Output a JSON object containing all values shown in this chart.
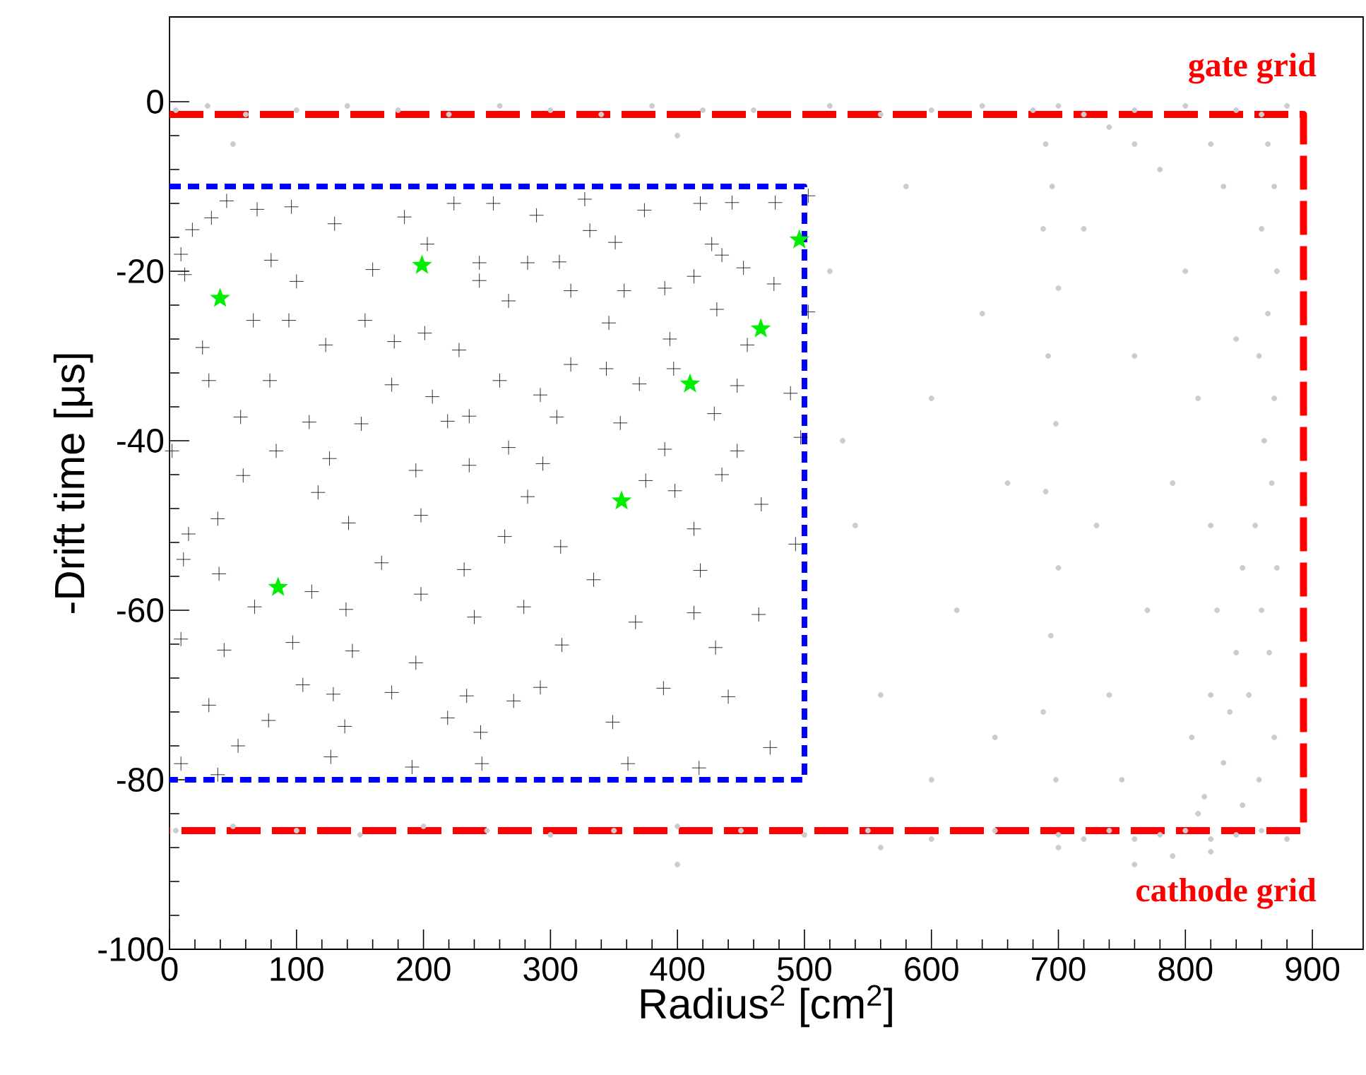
{
  "chart_data": {
    "type": "scatter",
    "xlabel": "Radius$^{2}$ [cm$^{2}$]",
    "ylabel": "-Drift time [μs]",
    "xlim": [
      0,
      940
    ],
    "ylim": [
      -100,
      10
    ],
    "xticks": [
      0,
      100,
      200,
      300,
      400,
      500,
      600,
      700,
      800,
      900
    ],
    "yticks": [
      -100,
      -80,
      -60,
      -40,
      -20,
      0
    ],
    "annotations": [
      "gate grid",
      "cathode grid"
    ],
    "series": [
      {
        "marker": "circle",
        "color": "#cccccc",
        "x": [
          5,
          30,
          60,
          100,
          140,
          180,
          220,
          260,
          300,
          340,
          380,
          420,
          460,
          520,
          560,
          600,
          640,
          680,
          700,
          720,
          760,
          800,
          840,
          860,
          880,
          5,
          50,
          100,
          150,
          200,
          250,
          300,
          350,
          400,
          450,
          500,
          550,
          600,
          650,
          700,
          720,
          740,
          760,
          780,
          800,
          820,
          840,
          860,
          880,
          700,
          760,
          790,
          820,
          400,
          560,
          865,
          870,
          860,
          872,
          865,
          858,
          870,
          862,
          868,
          855,
          872,
          860,
          866,
          850,
          870,
          858,
          845,
          805,
          820,
          830,
          815,
          840,
          835,
          810,
          825,
          845,
          690,
          695,
          688,
          700,
          692,
          698,
          690,
          700,
          694,
          688,
          698,
          520,
          540,
          560,
          580,
          600,
          620,
          640,
          650,
          660,
          720,
          730,
          740,
          760,
          770,
          780,
          790,
          800,
          810,
          820,
          830,
          840,
          750,
          600,
          760,
          740,
          820,
          50,
          400,
          530
        ],
        "values": [
          -1,
          -0.5,
          -1.5,
          -1,
          -0.5,
          -1,
          -1.5,
          -0.5,
          -1,
          -1.5,
          -0.5,
          -1,
          -1,
          -0.5,
          -1.5,
          -1,
          -0.5,
          -1,
          -0.5,
          -1.5,
          -1,
          -0.5,
          -1,
          -1.5,
          -0.5,
          -86,
          -85.5,
          -86,
          -86.5,
          -85.5,
          -86,
          -86.5,
          -86,
          -85.5,
          -86,
          -86.5,
          -86,
          -87,
          -86,
          -86.5,
          -87,
          -86,
          -87,
          -86.5,
          -86,
          -87,
          -86.5,
          -86,
          -87,
          -88,
          -90,
          -89,
          -88.5,
          -90,
          -88,
          -5,
          -10,
          -15,
          -20,
          -25,
          -30,
          -35,
          -40,
          -45,
          -50,
          -55,
          -60,
          -65,
          -70,
          -75,
          -80,
          -83,
          -75,
          -70,
          -78,
          -82,
          -65,
          -72,
          -84,
          -60,
          -55,
          -5,
          -10,
          -15,
          -22,
          -30,
          -38,
          -46,
          -55,
          -63,
          -72,
          -80,
          -20,
          -50,
          -70,
          -10,
          -35,
          -60,
          -25,
          -75,
          -45,
          -15,
          -50,
          -70,
          -30,
          -60,
          -8,
          -45,
          -20,
          -35,
          -50,
          -10,
          -28,
          -80,
          -80,
          -5,
          -3,
          -5,
          -5,
          -4,
          -40
        ]
      },
      {
        "type": "line",
        "line_style": "dashed",
        "color": "#ff0000",
        "x": [
          0,
          893,
          893,
          0
        ],
        "values": [
          -1.5,
          -1.5,
          -86,
          -86
        ]
      },
      {
        "type": "line",
        "line_style": "dotted",
        "color": "#0000ff",
        "x": [
          0,
          500,
          500,
          0
        ],
        "values": [
          -10,
          -10,
          -80,
          -80
        ]
      },
      {
        "marker": "cross",
        "color": "#000000",
        "x": [
          45,
          33,
          18,
          69,
          96,
          130,
          80,
          9,
          12,
          100,
          160,
          185,
          224,
          255,
          289,
          327,
          374,
          418,
          443,
          477,
          503,
          427,
          435,
          452,
          413,
          476,
          390,
          431,
          503,
          455,
          394,
          397,
          447,
          489,
          429,
          497,
          390,
          447,
          435,
          398,
          466,
          413,
          493,
          418,
          413,
          464,
          430,
          389,
          440,
          473,
          417,
          361,
          349,
          309,
          292,
          271,
          245,
          219,
          234,
          194,
          240,
          279,
          367,
          334,
          308,
          264,
          232,
          198,
          141,
          167,
          198,
          139,
          112,
          67,
          39,
          11,
          9,
          43,
          97,
          105,
          144,
          175,
          129,
          138,
          78,
          54,
          38,
          9,
          31,
          127,
          191,
          246,
          194,
          207,
          175,
          151,
          110,
          79,
          56,
          31,
          2,
          84,
          126,
          117,
          58,
          38,
          15,
          228,
          260,
          316,
          292,
          305,
          236,
          219,
          267,
          236,
          282,
          294,
          375,
          355,
          344,
          370,
          346,
          351,
          358,
          316,
          307,
          282,
          267,
          244,
          244,
          201,
          177,
          154,
          123,
          94,
          66,
          26,
          203,
          331
        ],
        "values": [
          -11.7,
          -13.7,
          -15.1,
          -12.7,
          -12.4,
          -14.4,
          -18.7,
          -18,
          -20.4,
          -21.2,
          -19.8,
          -13.6,
          -12,
          -12,
          -13.4,
          -11.5,
          -12.8,
          -12,
          -11.9,
          -11.9,
          -11.1,
          -16.8,
          -18.1,
          -19.6,
          -20.6,
          -21.5,
          -22,
          -24.5,
          -24.8,
          -28.7,
          -28,
          -31.5,
          -33.5,
          -34.4,
          -36.8,
          -39.6,
          -41,
          -41.2,
          -44,
          -45.9,
          -47.5,
          -50.4,
          -52.2,
          -55.3,
          -60.3,
          -60.5,
          -64.4,
          -69.2,
          -70.2,
          -76.2,
          -78.6,
          -78.1,
          -73.2,
          -64.1,
          -69.1,
          -70.7,
          -74.4,
          -72.7,
          -70.1,
          -66.2,
          -60.8,
          -59.6,
          -61.4,
          -56.4,
          -52.5,
          -51.3,
          -55.2,
          -48.8,
          -49.7,
          -54.4,
          -58.1,
          -59.9,
          -57.8,
          -59.6,
          -55.7,
          -54,
          -63.4,
          -64.7,
          -63.8,
          -68.8,
          -64.8,
          -69.7,
          -69.9,
          -73.7,
          -73,
          -76,
          -79.4,
          -78.1,
          -71.2,
          -77.3,
          -78.5,
          -78.1,
          -43.5,
          -34.8,
          -33.4,
          -38,
          -37.8,
          -32.9,
          -37.2,
          -32.9,
          -41.2,
          -41.2,
          -42.1,
          -46.1,
          -44.1,
          -49.2,
          -51,
          -29.3,
          -32.9,
          -31,
          -34.6,
          -37.2,
          -37.1,
          -37.7,
          -40.8,
          -42.9,
          -46.6,
          -42.7,
          -44.7,
          -37.9,
          -31.5,
          -33.3,
          -26.1,
          -16.6,
          -22.3,
          -22.3,
          -18.9,
          -19,
          -23.5,
          -19,
          -21.1,
          -27.3,
          -28.3,
          -25.8,
          -28.7,
          -25.8,
          -25.8,
          -29,
          -16.8,
          -15.2
        ]
      },
      {
        "marker": "star",
        "color": "#00ee00",
        "x": [
          39.8,
          198.8,
          496,
          465.6,
          409.9,
          356,
          85.5
        ],
        "values": [
          -23.2,
          -19.3,
          -16.3,
          -26.8,
          -33.3,
          -47.1,
          -57.3
        ]
      }
    ]
  }
}
